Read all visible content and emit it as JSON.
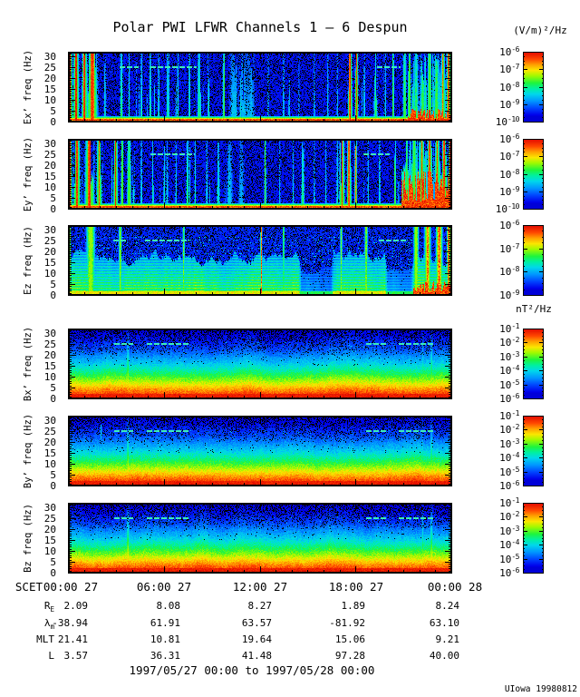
{
  "title": "Polar PWI LFWR Channels 1 — 6 Despun",
  "footer": "1997/05/27 00:00 to 1997/05/28 00:00",
  "credit": "UIowa 19980812",
  "chart_data": {
    "type": "heatmap",
    "description": "Six 24-hour frequency-time spectrogram panels from Polar PWI LFWR: electric field channels Ex',Ey',Ez and magnetic field channels Bx',By',Bz, 0-32 Hz, rainbow color scale",
    "time_range": [
      "1997/05/27 00:00",
      "1997/05/28 00:00"
    ],
    "freq_range_hz": [
      0,
      32
    ],
    "yticks": [
      30,
      25,
      20,
      15,
      10,
      5,
      0
    ],
    "xticks": {
      "prefix": "SCET",
      "labels": [
        "00:00 27",
        "06:00 27",
        "12:00 27",
        "18:00 27",
        "00:00 28"
      ]
    },
    "colorbars": {
      "e_unit": "(V/m)²/Hz",
      "b_unit": "nT²/Hz",
      "base": "10"
    },
    "panels": [
      {
        "id": "ex",
        "ylabel": "Ex’ freq (Hz)",
        "kind": "E",
        "seed": 7,
        "cb": [
          "-6",
          "-7",
          "-8",
          "-9",
          "-10"
        ],
        "events": [
          [
            0.004,
            2,
            1.0
          ],
          [
            0.02,
            2.2,
            1.0
          ],
          [
            0.042,
            2,
            0.98
          ],
          [
            0.062,
            4,
            0.95
          ],
          [
            0.095,
            1,
            0.45
          ],
          [
            0.138,
            1.2,
            0.58
          ],
          [
            0.158,
            0.8,
            0.48
          ],
          [
            0.19,
            0.8,
            0.52
          ],
          [
            0.213,
            0.9,
            0.55
          ],
          [
            0.235,
            0.8,
            0.48
          ],
          [
            0.258,
            1,
            0.52
          ],
          [
            0.285,
            0.8,
            0.5
          ],
          [
            0.315,
            0.9,
            0.52
          ],
          [
            0.34,
            1.4,
            0.58
          ],
          [
            0.365,
            1,
            0.48
          ],
          [
            0.405,
            0.7,
            0.82
          ],
          [
            0.43,
            4,
            0.4
          ],
          [
            0.455,
            5,
            0.38
          ],
          [
            0.475,
            4,
            0.36
          ],
          [
            0.52,
            0.8,
            0.38
          ],
          [
            0.56,
            0.8,
            0.42
          ],
          [
            0.6,
            0.7,
            0.34
          ],
          [
            0.64,
            0.8,
            0.38
          ],
          [
            0.675,
            0.8,
            0.42
          ],
          [
            0.7,
            0.8,
            0.38
          ],
          [
            0.733,
            1.6,
            0.97
          ],
          [
            0.75,
            1.3,
            0.93
          ],
          [
            0.77,
            0.8,
            0.48
          ],
          [
            0.8,
            1.5,
            0.58
          ],
          [
            0.825,
            0.8,
            0.42
          ],
          [
            0.845,
            0.7,
            0.8
          ],
          [
            0.875,
            1.5,
            0.68
          ],
          [
            0.888,
            1,
            0.88
          ],
          [
            0.905,
            2,
            0.62
          ],
          [
            0.922,
            2,
            0.66
          ],
          [
            0.94,
            1.5,
            0.88
          ],
          [
            0.958,
            2,
            0.72
          ],
          [
            0.975,
            1.5,
            0.9
          ],
          [
            0.99,
            2,
            0.93
          ]
        ],
        "quiet": [
          [
            0.5,
            0.56
          ],
          [
            0.6,
            0.72
          ],
          [
            0.825,
            0.875
          ]
        ],
        "zones": [
          [
            0.885,
            1.0,
            0.5,
            5
          ]
        ],
        "dashes": [
          [
            0.135,
            0.185
          ],
          [
            0.215,
            0.335
          ],
          [
            0.805,
            0.865
          ]
        ]
      },
      {
        "id": "ey",
        "ylabel": "Ey’ freq (Hz)",
        "kind": "E",
        "seed": 23,
        "cb": [
          "-6",
          "-7",
          "-8",
          "-9",
          "-10"
        ],
        "events": [
          [
            0.003,
            2,
            1.0
          ],
          [
            0.022,
            2.5,
            0.97
          ],
          [
            0.055,
            3.5,
            0.95
          ],
          [
            0.08,
            2,
            0.9
          ],
          [
            0.123,
            1.6,
            0.97
          ],
          [
            0.14,
            1,
            0.88
          ],
          [
            0.158,
            1.6,
            0.75
          ],
          [
            0.19,
            0.8,
            0.48
          ],
          [
            0.22,
            0.9,
            0.52
          ],
          [
            0.25,
            0.8,
            0.48
          ],
          [
            0.28,
            0.8,
            0.44
          ],
          [
            0.31,
            1.2,
            0.56
          ],
          [
            0.33,
            0.8,
            0.48
          ],
          [
            0.36,
            0.8,
            0.44
          ],
          [
            0.39,
            1,
            0.52
          ],
          [
            0.42,
            3,
            0.38
          ],
          [
            0.45,
            3,
            0.36
          ],
          [
            0.512,
            0.7,
            0.85
          ],
          [
            0.55,
            0.8,
            0.38
          ],
          [
            0.585,
            0.8,
            0.42
          ],
          [
            0.61,
            1.5,
            0.55
          ],
          [
            0.64,
            0.8,
            0.4
          ],
          [
            0.67,
            0.8,
            0.42
          ],
          [
            0.7,
            1,
            0.48
          ],
          [
            0.712,
            2,
            0.92
          ],
          [
            0.73,
            1.5,
            0.95
          ],
          [
            0.748,
            1,
            0.88
          ],
          [
            0.78,
            0.8,
            0.44
          ],
          [
            0.81,
            0.8,
            0.48
          ],
          [
            0.85,
            0.7,
            0.8
          ],
          [
            0.88,
            1.5,
            0.75
          ],
          [
            0.9,
            2,
            0.85
          ],
          [
            0.92,
            2,
            0.9
          ],
          [
            0.94,
            2,
            0.92
          ],
          [
            0.96,
            2,
            0.9
          ],
          [
            0.978,
            2,
            0.95
          ],
          [
            0.993,
            1.5,
            0.97
          ]
        ],
        "quiet": [
          [
            0.42,
            0.5
          ],
          [
            0.53,
            0.7
          ],
          [
            0.79,
            0.845
          ]
        ],
        "zones": [
          [
            0.87,
            1.0,
            0.55,
            14
          ]
        ],
        "dashes": [
          [
            0.215,
            0.33
          ],
          [
            0.77,
            0.838
          ]
        ]
      },
      {
        "id": "ez",
        "ylabel": "Ez freq (Hz)",
        "kind": "EZ",
        "seed": 41,
        "cb": [
          "-6",
          "-7",
          "-8",
          "-9"
        ],
        "events": [
          [
            0.002,
            1.2,
            0.95
          ],
          [
            0.058,
            3.5,
            0.72
          ],
          [
            0.135,
            1.2,
            0.66
          ],
          [
            0.3,
            0.9,
            0.6
          ],
          [
            0.502,
            0.7,
            0.88
          ],
          [
            0.56,
            0.8,
            0.6
          ],
          [
            0.71,
            0.9,
            0.62
          ],
          [
            0.775,
            1.2,
            0.66
          ],
          [
            0.905,
            2,
            0.75
          ],
          [
            0.935,
            2.5,
            0.85
          ],
          [
            0.965,
            2.5,
            0.88
          ],
          [
            0.99,
            1.5,
            0.92
          ]
        ],
        "dark": [
          [
            0.6,
            0.69
          ],
          [
            0.825,
            0.9
          ]
        ],
        "zones": [
          [
            0.9,
            1.0,
            0.5,
            4
          ]
        ],
        "dashes": [
          [
            0.118,
            0.152
          ],
          [
            0.2,
            0.315
          ],
          [
            0.81,
            0.885
          ]
        ]
      },
      {
        "id": "bx",
        "ylabel": "Bx’ freq (Hz)",
        "kind": "B",
        "seed": 67,
        "cb": [
          "-1",
          "-2",
          "-3",
          "-4",
          "-5",
          "-6"
        ],
        "events": [
          [
            0.155,
            1.8,
            1.0
          ],
          [
            0.922,
            1.2,
            0.85
          ],
          [
            0.945,
            1.6,
            0.95
          ]
        ],
        "dashes": [
          [
            0.12,
            0.17
          ],
          [
            0.205,
            0.315
          ],
          [
            0.775,
            0.832
          ],
          [
            0.862,
            0.952
          ]
        ]
      },
      {
        "id": "by",
        "ylabel": "By’ freq (Hz)",
        "kind": "B",
        "seed": 83,
        "cb": [
          "-1",
          "-2",
          "-3",
          "-4",
          "-5",
          "-6"
        ],
        "events": [
          [
            0.155,
            1.8,
            1.0
          ],
          [
            0.922,
            1.2,
            0.85
          ],
          [
            0.945,
            1.6,
            0.95
          ]
        ],
        "marks": [
          [
            0.085,
            21,
            28
          ]
        ],
        "dashes": [
          [
            0.12,
            0.17
          ],
          [
            0.205,
            0.315
          ],
          [
            0.775,
            0.832
          ],
          [
            0.862,
            0.952
          ]
        ]
      },
      {
        "id": "bz",
        "ylabel": "Bz freq (Hz)",
        "kind": "B",
        "seed": 101,
        "cb": [
          "-1",
          "-2",
          "-3",
          "-4",
          "-5",
          "-6"
        ],
        "events": [
          [
            0.155,
            1.8,
            1.05
          ],
          [
            0.922,
            1.3,
            0.9
          ],
          [
            0.945,
            1.6,
            1.0
          ]
        ],
        "dashes": [
          [
            0.12,
            0.17
          ],
          [
            0.205,
            0.315
          ],
          [
            0.775,
            0.832
          ],
          [
            0.862,
            0.952
          ]
        ]
      }
    ],
    "ephemeris": {
      "rows": [
        {
          "key": "re",
          "label": "R",
          "sub": "E",
          "values": [
            "2.09",
            "8.08",
            "8.27",
            "1.89",
            "8.24"
          ]
        },
        {
          "key": "lambda-m",
          "label": "λ",
          "sub": "m",
          "values": [
            "-38.94",
            "61.91",
            "63.57",
            "-81.92",
            "63.10"
          ]
        },
        {
          "key": "mlt",
          "label": "MLT",
          "sub": "",
          "values": [
            "21.41",
            "10.81",
            "19.64",
            "15.06",
            "9.21"
          ]
        },
        {
          "key": "l",
          "label": "L",
          "sub": "",
          "values": [
            "3.57",
            "36.31",
            "41.48",
            "97.28",
            "40.00"
          ]
        }
      ]
    }
  }
}
